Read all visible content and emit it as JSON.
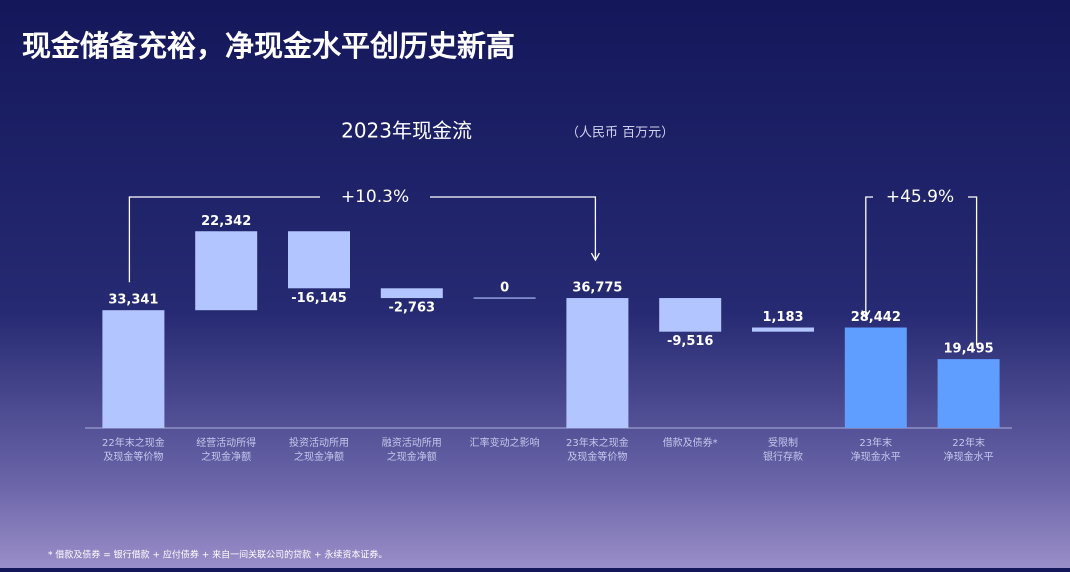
{
  "title": "现金储备充裕，净现金水平创历史新高",
  "footnote": "* 借款及债券 = 银行借款 + 应付债券 + 来自一间关联公司的贷款 + 永续资本证券。",
  "chart_data": {
    "type": "waterfall",
    "title": "2023年现金流",
    "subtitle": "（人民币 百万元）",
    "categories": [
      [
        "22年末之现金",
        "及现金等价物"
      ],
      [
        "经营活动所得",
        "之现金净额"
      ],
      [
        "投资活动所用",
        "之现金净额"
      ],
      [
        "融资活动所用",
        "之现金净额"
      ],
      [
        "汇率变动之影响"
      ],
      [
        "23年末之现金",
        "及现金等价物"
      ],
      [
        "借款及债券*"
      ],
      [
        "受限制",
        "银行存款"
      ],
      [
        "23年末",
        "净现金水平"
      ],
      [
        "22年末",
        "净现金水平"
      ]
    ],
    "values": [
      33341,
      22342,
      -16145,
      -2763,
      0,
      36775,
      -9516,
      1183,
      28442,
      19495
    ],
    "value_labels": [
      "33,341",
      "22,342",
      "-16,145",
      "-2,763",
      "0",
      "36,775",
      "-9,516",
      "1,183",
      "28,442",
      "19,495"
    ],
    "measures": [
      "total",
      "relative",
      "relative",
      "relative",
      "relative",
      "total",
      "relative",
      "relative",
      "total",
      "total"
    ],
    "colors": [
      "#b3c5ff",
      "#b3c5ff",
      "#b3c5ff",
      "#b3c5ff",
      "#b3c5ff",
      "#b3c5ff",
      "#b3c5ff",
      "#b3c5ff",
      "#5f9dff",
      "#5f9dff"
    ],
    "annotations": [
      "+10.3%",
      "+45.9%"
    ],
    "ylim": [
      0,
      60000
    ]
  }
}
